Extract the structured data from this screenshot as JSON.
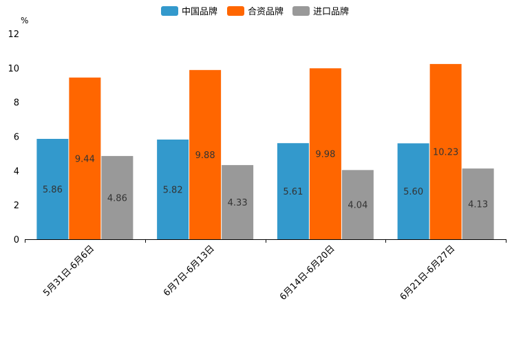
{
  "chart_data": {
    "type": "bar",
    "title": "",
    "xlabel": "",
    "ylabel": "%",
    "ylim": [
      0,
      12
    ],
    "yticks": [
      "0",
      "2",
      "4",
      "6",
      "8",
      "10",
      "12"
    ],
    "categories": [
      "5月31日-6月6日",
      "6月7日-6月13日",
      "6月14日-6月20日",
      "6月21日-6月27日"
    ],
    "legend_position": "top-center",
    "grid": false,
    "series": [
      {
        "name": "中国品牌",
        "color": "#3399CC",
        "values": [
          5.86,
          5.82,
          5.61,
          5.6
        ],
        "labels": [
          "5.86",
          "5.82",
          "5.61",
          "5.60"
        ]
      },
      {
        "name": "合资品牌",
        "color": "#FF6600",
        "values": [
          9.44,
          9.88,
          9.98,
          10.23
        ],
        "labels": [
          "9.44",
          "9.88",
          "9.98",
          "10.23"
        ]
      },
      {
        "name": "进口品牌",
        "color": "#999999",
        "values": [
          4.86,
          4.33,
          4.04,
          4.13
        ],
        "labels": [
          "4.86",
          "4.33",
          "4.04",
          "4.13"
        ]
      }
    ]
  }
}
